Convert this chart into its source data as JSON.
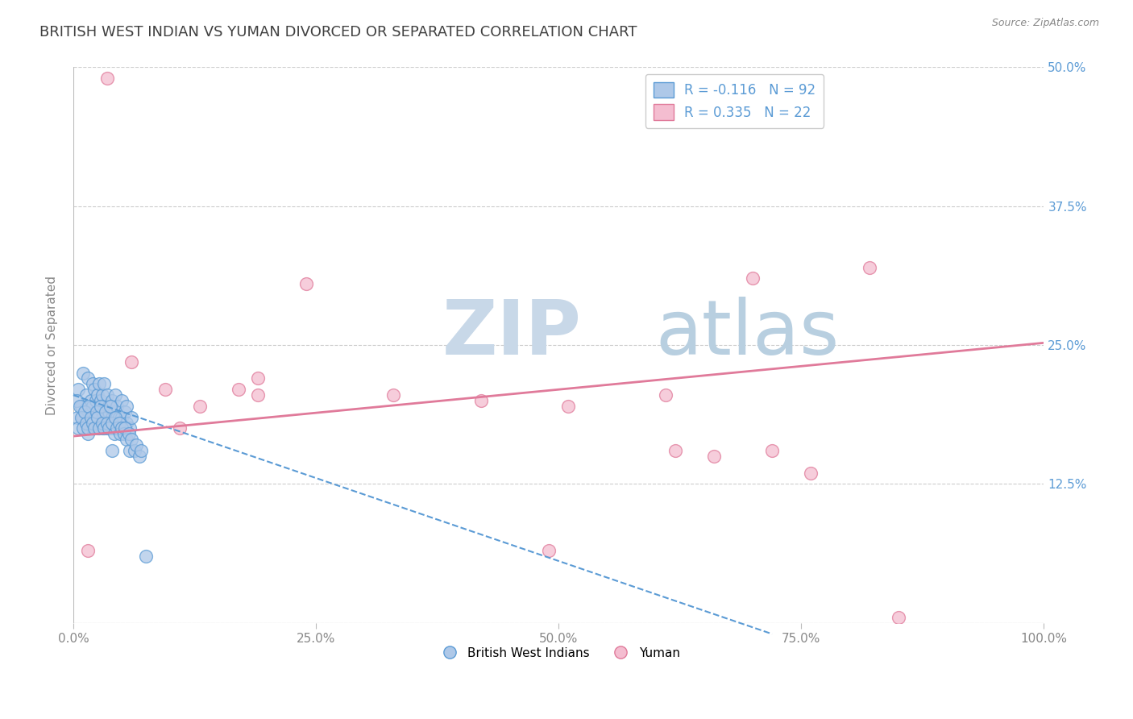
{
  "title": "BRITISH WEST INDIAN VS YUMAN DIVORCED OR SEPARATED CORRELATION CHART",
  "source_text": "Source: ZipAtlas.com",
  "ylabel": "Divorced or Separated",
  "watermark_zip": "ZIP",
  "watermark_atlas": "atlas",
  "legend_line1": "R = -0.116   N = 92",
  "legend_line2": "R = 0.335   N = 22",
  "legend_labels": [
    "British West Indians",
    "Yuman"
  ],
  "xlim": [
    0.0,
    1.0
  ],
  "ylim": [
    0.0,
    0.5
  ],
  "xticks": [
    0.0,
    0.25,
    0.5,
    0.75,
    1.0
  ],
  "xtick_labels": [
    "0.0%",
    "25.0%",
    "50.0%",
    "75.0%",
    "100.0%"
  ],
  "yticks": [
    0.0,
    0.125,
    0.25,
    0.375,
    0.5
  ],
  "right_ytick_labels": [
    "",
    "12.5%",
    "25.0%",
    "37.5%",
    "50.0%"
  ],
  "blue_scatter_x": [
    0.005,
    0.008,
    0.01,
    0.01,
    0.012,
    0.013,
    0.015,
    0.015,
    0.018,
    0.018,
    0.02,
    0.02,
    0.02,
    0.022,
    0.022,
    0.023,
    0.025,
    0.025,
    0.025,
    0.027,
    0.028,
    0.028,
    0.03,
    0.03,
    0.03,
    0.032,
    0.032,
    0.033,
    0.035,
    0.035,
    0.035,
    0.037,
    0.038,
    0.04,
    0.04,
    0.04,
    0.042,
    0.043,
    0.045,
    0.045,
    0.047,
    0.048,
    0.05,
    0.05,
    0.052,
    0.053,
    0.055,
    0.055,
    0.058,
    0.06,
    0.003,
    0.004,
    0.005,
    0.007,
    0.008,
    0.01,
    0.012,
    0.013,
    0.015,
    0.016,
    0.018,
    0.02,
    0.022,
    0.024,
    0.025,
    0.027,
    0.028,
    0.03,
    0.032,
    0.033,
    0.035,
    0.037,
    0.038,
    0.04,
    0.042,
    0.043,
    0.045,
    0.047,
    0.048,
    0.05,
    0.052,
    0.053,
    0.055,
    0.057,
    0.058,
    0.06,
    0.063,
    0.065,
    0.068,
    0.07,
    0.075,
    0.04
  ],
  "blue_scatter_y": [
    0.21,
    0.195,
    0.185,
    0.225,
    0.19,
    0.205,
    0.17,
    0.22,
    0.18,
    0.2,
    0.195,
    0.215,
    0.175,
    0.185,
    0.21,
    0.2,
    0.19,
    0.175,
    0.205,
    0.215,
    0.18,
    0.2,
    0.185,
    0.205,
    0.175,
    0.195,
    0.215,
    0.185,
    0.19,
    0.205,
    0.175,
    0.195,
    0.18,
    0.185,
    0.2,
    0.175,
    0.19,
    0.205,
    0.175,
    0.195,
    0.185,
    0.175,
    0.185,
    0.2,
    0.175,
    0.19,
    0.18,
    0.195,
    0.175,
    0.185,
    0.2,
    0.185,
    0.175,
    0.195,
    0.185,
    0.175,
    0.19,
    0.18,
    0.175,
    0.195,
    0.185,
    0.18,
    0.175,
    0.19,
    0.185,
    0.175,
    0.195,
    0.18,
    0.175,
    0.19,
    0.18,
    0.175,
    0.195,
    0.18,
    0.17,
    0.185,
    0.175,
    0.18,
    0.17,
    0.175,
    0.17,
    0.175,
    0.165,
    0.17,
    0.155,
    0.165,
    0.155,
    0.16,
    0.15,
    0.155,
    0.06,
    0.155
  ],
  "pink_scatter_x": [
    0.015,
    0.035,
    0.06,
    0.095,
    0.11,
    0.13,
    0.17,
    0.19,
    0.19,
    0.24,
    0.33,
    0.42,
    0.51,
    0.61,
    0.62,
    0.66,
    0.7,
    0.72,
    0.76,
    0.82,
    0.85,
    0.49
  ],
  "pink_scatter_y": [
    0.065,
    0.49,
    0.235,
    0.21,
    0.175,
    0.195,
    0.21,
    0.22,
    0.205,
    0.305,
    0.205,
    0.2,
    0.195,
    0.205,
    0.155,
    0.15,
    0.31,
    0.155,
    0.135,
    0.32,
    0.005,
    0.065
  ],
  "blue_line_x": [
    0.0,
    0.72
  ],
  "blue_line_y": [
    0.205,
    -0.01
  ],
  "pink_line_x": [
    0.0,
    1.0
  ],
  "pink_line_y": [
    0.168,
    0.252
  ],
  "title_color": "#404040",
  "title_fontsize": 13,
  "axis_color": "#bbbbbb",
  "grid_color": "#cccccc",
  "tick_color": "#888888",
  "blue_dot_color": "#aec8e8",
  "blue_dot_edge": "#5b9bd5",
  "pink_dot_color": "#f4bdd0",
  "pink_dot_edge": "#e07a9a",
  "blue_line_color": "#5b9bd5",
  "pink_line_color": "#e07a9a",
  "watermark_zip_color": "#c8d8e8",
  "watermark_atlas_color": "#b8cfe0",
  "right_tick_color": "#5b9bd5",
  "source_color": "#888888"
}
